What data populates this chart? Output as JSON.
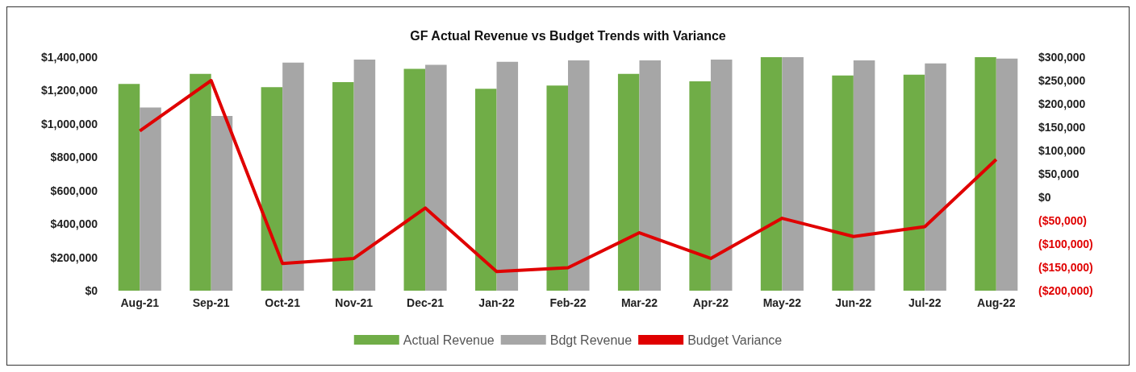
{
  "chart_data": {
    "type": "bar",
    "title": "GF Actual Revenue vs Budget Trends with Variance",
    "categories": [
      "Aug-21",
      "Sep-21",
      "Oct-21",
      "Nov-21",
      "Dec-21",
      "Jan-22",
      "Feb-22",
      "Mar-22",
      "Apr-22",
      "May-22",
      "Jun-22",
      "Jul-22",
      "Aug-22"
    ],
    "series": [
      {
        "name": "Actual Revenue",
        "color": "#70ad47",
        "values": [
          1240000,
          1300000,
          1220000,
          1250000,
          1330000,
          1210000,
          1230000,
          1300000,
          1255000,
          1400000,
          1290000,
          1295000,
          1400000
        ]
      },
      {
        "name": "Bdgt Revenue",
        "color": "#a6a6a6",
        "values": [
          1098000,
          1048000,
          1368000,
          1386000,
          1354000,
          1372000,
          1381000,
          1381000,
          1386000,
          1400000,
          1381000,
          1363000,
          1391000
        ]
      },
      {
        "name": "Budget Variance",
        "type": "line",
        "axis": "y2",
        "color": "#e00000",
        "values": [
          142000,
          250000,
          -142000,
          -131000,
          -23000,
          -159000,
          -151000,
          -76000,
          -131000,
          -45000,
          -84000,
          -63000,
          81000
        ]
      }
    ],
    "ylim": [
      0,
      1400000
    ],
    "yticks": [
      {
        "value": 0,
        "label": "$0"
      },
      {
        "value": 200000,
        "label": "$200,000"
      },
      {
        "value": 400000,
        "label": "$400,000"
      },
      {
        "value": 600000,
        "label": "$600,000"
      },
      {
        "value": 800000,
        "label": "$800,000"
      },
      {
        "value": 1000000,
        "label": "$1,000,000"
      },
      {
        "value": 1200000,
        "label": "$1,200,000"
      },
      {
        "value": 1400000,
        "label": "$1,400,000"
      }
    ],
    "y2lim": [
      -200000,
      300000
    ],
    "y2ticks": [
      {
        "value": -200000,
        "label": "($200,000)"
      },
      {
        "value": -150000,
        "label": "($150,000)"
      },
      {
        "value": -100000,
        "label": "($100,000)"
      },
      {
        "value": -50000,
        "label": "($50,000)"
      },
      {
        "value": 0,
        "label": "$0"
      },
      {
        "value": 50000,
        "label": "$50,000"
      },
      {
        "value": 100000,
        "label": "$100,000"
      },
      {
        "value": 150000,
        "label": "$150,000"
      },
      {
        "value": 200000,
        "label": "$200,000"
      },
      {
        "value": 250000,
        "label": "$250,000"
      },
      {
        "value": 300000,
        "label": "$300,000"
      }
    ],
    "grid": false,
    "legend": "bottom",
    "marker": "none"
  }
}
